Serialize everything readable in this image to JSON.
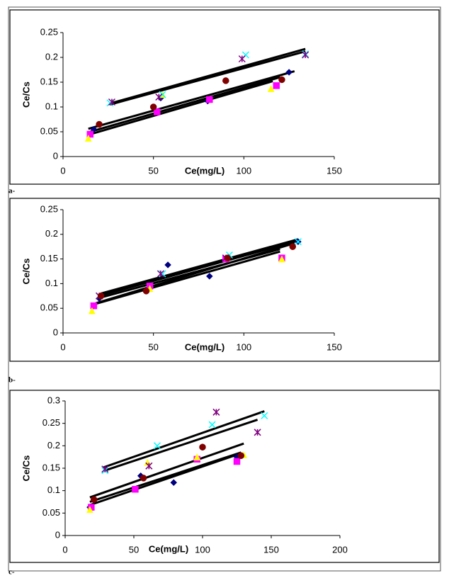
{
  "chart_data": [
    {
      "type": "scatter",
      "label": "a-",
      "xlabel": "Ce(mg/L)",
      "ylabel": "Ce/Cs",
      "xlim": [
        0,
        150
      ],
      "xticks": [
        0,
        50,
        100,
        150
      ],
      "ylim": [
        0,
        0.25
      ],
      "yticks": [
        0,
        0.05,
        0.1,
        0.15,
        0.2,
        0.25
      ],
      "series": [
        {
          "marker": "diamond",
          "color": "#000080",
          "x": [
            17,
            54,
            80,
            125
          ],
          "values": [
            0.055,
            0.118,
            0.112,
            0.17
          ]
        },
        {
          "marker": "square",
          "color": "#ff00ff",
          "x": [
            15,
            52,
            81,
            118
          ],
          "values": [
            0.045,
            0.09,
            0.115,
            0.143
          ]
        },
        {
          "marker": "triangle",
          "color": "#ffff00",
          "x": [
            14,
            55,
            115
          ],
          "values": [
            0.037,
            0.125,
            0.137
          ]
        },
        {
          "marker": "cross",
          "color": "#00ffff",
          "x": [
            26,
            55,
            101,
            134
          ],
          "values": [
            0.108,
            0.125,
            0.205,
            0.207
          ]
        },
        {
          "marker": "star",
          "color": "#800080",
          "x": [
            27,
            53,
            99,
            134
          ],
          "values": [
            0.11,
            0.12,
            0.197,
            0.205
          ]
        },
        {
          "marker": "circle",
          "color": "#800000",
          "x": [
            20,
            50,
            90,
            121
          ],
          "values": [
            0.065,
            0.1,
            0.153,
            0.155
          ]
        }
      ],
      "fit_lines": [
        {
          "x": [
            26,
            134
          ],
          "values": [
            0.107,
            0.217
          ]
        },
        {
          "x": [
            26,
            134
          ],
          "values": [
            0.105,
            0.212
          ]
        },
        {
          "x": [
            14,
            128
          ],
          "values": [
            0.056,
            0.172
          ]
        },
        {
          "x": [
            15,
            120
          ],
          "values": [
            0.05,
            0.16
          ]
        },
        {
          "x": [
            16,
            116
          ],
          "values": [
            0.046,
            0.152
          ]
        }
      ]
    },
    {
      "type": "scatter",
      "label": "b-",
      "xlabel": "Ce(mg/L)",
      "ylabel": "Ce/Cs",
      "xlim": [
        0,
        150
      ],
      "xticks": [
        0,
        50,
        100,
        150
      ],
      "ylim": [
        0,
        0.25
      ],
      "yticks": [
        0,
        0.05,
        0.1,
        0.15,
        0.2,
        0.25
      ],
      "series": [
        {
          "marker": "diamond",
          "color": "#000080",
          "x": [
            20,
            58,
            81,
            130
          ],
          "values": [
            0.07,
            0.138,
            0.115,
            0.185
          ]
        },
        {
          "marker": "square",
          "color": "#ff00ff",
          "x": [
            17,
            48,
            90,
            121
          ],
          "values": [
            0.055,
            0.095,
            0.15,
            0.152
          ]
        },
        {
          "marker": "triangle",
          "color": "#ffff00",
          "x": [
            16,
            48,
            121
          ],
          "values": [
            0.045,
            0.09,
            0.15
          ]
        },
        {
          "marker": "cross",
          "color": "#00ffff",
          "x": [
            20,
            55,
            92,
            130
          ],
          "values": [
            0.075,
            0.12,
            0.158,
            0.185
          ]
        },
        {
          "marker": "star",
          "color": "#800080",
          "x": [
            20,
            54,
            90
          ],
          "values": [
            0.075,
            0.12,
            0.152
          ]
        },
        {
          "marker": "circle",
          "color": "#800000",
          "x": [
            21,
            46,
            91,
            127
          ],
          "values": [
            0.075,
            0.085,
            0.152,
            0.175
          ]
        }
      ],
      "fit_lines": [
        {
          "x": [
            21,
            130
          ],
          "values": [
            0.08,
            0.19
          ]
        },
        {
          "x": [
            21,
            130
          ],
          "values": [
            0.076,
            0.187
          ]
        },
        {
          "x": [
            18,
            128
          ],
          "values": [
            0.06,
            0.182
          ]
        },
        {
          "x": [
            17,
            120
          ],
          "values": [
            0.058,
            0.165
          ]
        },
        {
          "x": [
            19,
            120
          ],
          "values": [
            0.07,
            0.17
          ]
        }
      ]
    },
    {
      "type": "scatter",
      "label": "c-",
      "xlabel": "Ce(mg/L)",
      "ylabel": "Ce/Cs",
      "xlim": [
        0,
        200
      ],
      "xticks": [
        0,
        50,
        100,
        150,
        200
      ],
      "ylim": [
        0,
        0.3
      ],
      "yticks": [
        0,
        0.05,
        0.1,
        0.15,
        0.2,
        0.25,
        0.3
      ],
      "series": [
        {
          "marker": "diamond",
          "color": "#000080",
          "x": [
            18,
            55,
            79,
            125
          ],
          "values": [
            0.063,
            0.133,
            0.118,
            0.175
          ]
        },
        {
          "marker": "square",
          "color": "#ff00ff",
          "x": [
            19,
            51,
            96,
            125
          ],
          "values": [
            0.063,
            0.103,
            0.17,
            0.165
          ]
        },
        {
          "marker": "triangle",
          "color": "#ffff00",
          "x": [
            18,
            60,
            96,
            130
          ],
          "values": [
            0.058,
            0.163,
            0.175,
            0.18
          ]
        },
        {
          "marker": "cross",
          "color": "#00ffff",
          "x": [
            29,
            67,
            107,
            145
          ],
          "values": [
            0.145,
            0.2,
            0.247,
            0.267
          ]
        },
        {
          "marker": "star",
          "color": "#800080",
          "x": [
            29,
            61,
            110,
            140
          ],
          "values": [
            0.148,
            0.155,
            0.275,
            0.23
          ]
        },
        {
          "marker": "circle",
          "color": "#800000",
          "x": [
            21,
            57,
            100,
            128
          ],
          "values": [
            0.08,
            0.128,
            0.197,
            0.178
          ]
        }
      ],
      "fit_lines": [
        {
          "x": [
            28,
            145
          ],
          "values": [
            0.152,
            0.277
          ]
        },
        {
          "x": [
            29,
            140
          ],
          "values": [
            0.145,
            0.258
          ]
        },
        {
          "x": [
            18,
            130
          ],
          "values": [
            0.085,
            0.205
          ]
        },
        {
          "x": [
            18,
            128
          ],
          "values": [
            0.075,
            0.185
          ]
        },
        {
          "x": [
            18,
            125
          ],
          "values": [
            0.068,
            0.18
          ]
        }
      ]
    }
  ]
}
